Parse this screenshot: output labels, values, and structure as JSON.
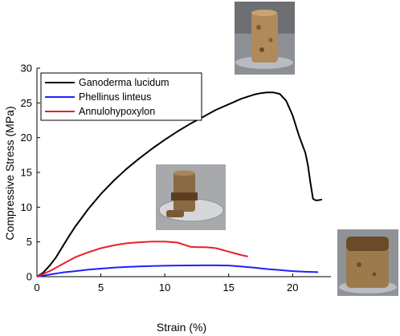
{
  "chart_data": {
    "type": "line",
    "title": "",
    "xlabel": "Strain (%)",
    "ylabel": "Compressive Stress (MPa)",
    "xlim": [
      0,
      23
    ],
    "ylim": [
      0,
      30
    ],
    "xticks": [
      0,
      5,
      10,
      15,
      20
    ],
    "yticks": [
      0,
      5,
      10,
      15,
      20,
      25,
      30
    ],
    "grid": false,
    "legend_position": "top-left",
    "series": [
      {
        "name": "Ganoderma lucidum",
        "color": "#000000",
        "x": [
          0,
          0.5,
          1,
          1.5,
          2,
          2.5,
          3,
          4,
          5,
          6,
          7,
          8,
          9,
          10,
          11,
          12,
          13,
          14,
          15,
          16,
          17,
          17.5,
          18,
          18.5,
          19,
          19.5,
          20,
          20.5,
          21,
          21.2,
          21.4,
          21.6,
          21.8,
          22,
          22.3
        ],
        "y": [
          0,
          0.6,
          1.6,
          2.8,
          4.3,
          5.8,
          7.2,
          9.7,
          11.9,
          13.8,
          15.5,
          17.0,
          18.4,
          19.7,
          20.9,
          22.0,
          23.0,
          24.0,
          24.8,
          25.6,
          26.2,
          26.4,
          26.5,
          26.5,
          26.3,
          25.3,
          23.2,
          20.3,
          17.8,
          16.0,
          13.5,
          11.2,
          11.0,
          11.0,
          11.1
        ]
      },
      {
        "name": "Phellinus linteus",
        "color": "#1f1fff",
        "x": [
          0,
          1,
          2,
          3,
          4,
          5,
          6,
          7,
          8,
          9,
          10,
          11,
          12,
          13,
          14,
          15,
          16,
          17,
          18,
          19,
          20,
          21,
          22
        ],
        "y": [
          0,
          0.3,
          0.6,
          0.8,
          1.0,
          1.15,
          1.3,
          1.4,
          1.48,
          1.53,
          1.57,
          1.6,
          1.62,
          1.63,
          1.63,
          1.6,
          1.45,
          1.3,
          1.1,
          0.95,
          0.8,
          0.7,
          0.65
        ]
      },
      {
        "name": "Annulohypoxylon",
        "color": "#e8202a",
        "x": [
          0,
          1,
          2,
          3,
          4,
          5,
          6,
          7,
          8,
          9,
          10,
          11,
          11.5,
          12,
          12.5,
          13,
          13.5,
          14,
          14.5,
          15,
          15.5,
          16,
          16.5
        ],
        "y": [
          0,
          0.8,
          1.8,
          2.8,
          3.5,
          4.1,
          4.5,
          4.8,
          4.95,
          5.05,
          5.05,
          4.9,
          4.6,
          4.3,
          4.25,
          4.25,
          4.2,
          4.1,
          3.85,
          3.6,
          3.35,
          3.1,
          2.9
        ]
      }
    ]
  }
}
